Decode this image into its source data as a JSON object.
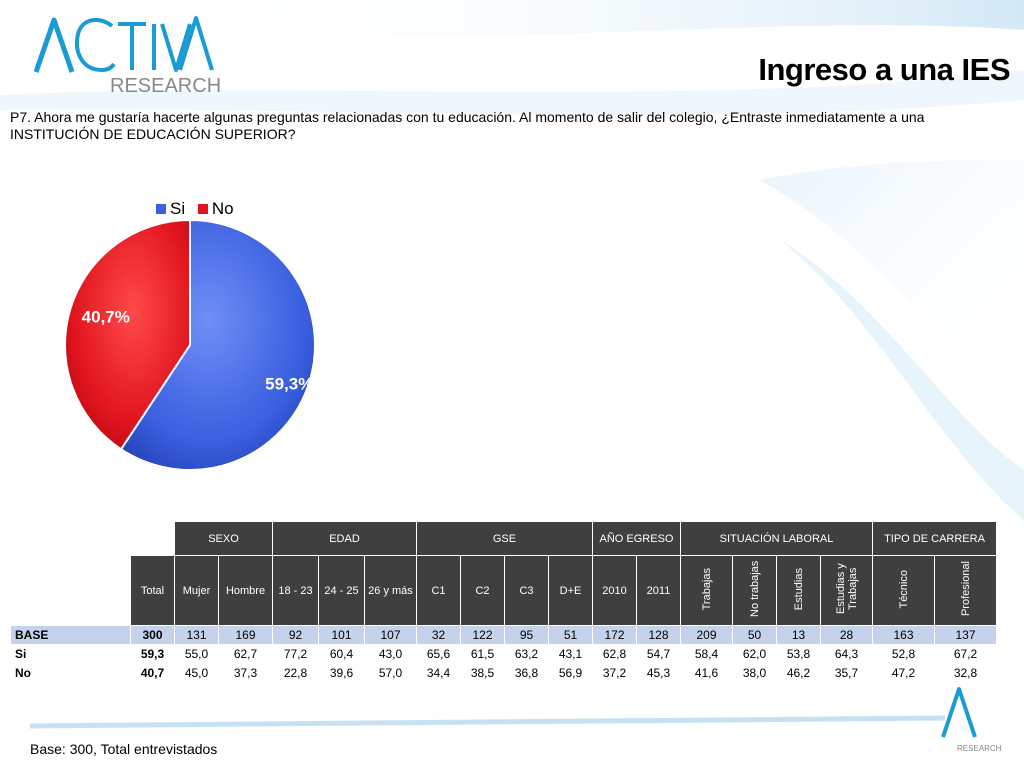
{
  "brand": {
    "logo_main": "ACTIVA",
    "logo_sub": "RESEARCH",
    "footer_logo_text": "RESEARCH"
  },
  "slide": {
    "title": "Ingreso a una IES",
    "question": "P7. Ahora me gustaría hacerte algunas preguntas relacionadas con tu educación. Al momento de salir del colegio, ¿Entraste inmediatamente a una INSTITUCIÓN DE EDUCACIÓN SUPERIOR?",
    "footer": "Base: 300, Total entrevistados"
  },
  "colors": {
    "si": "#3a5fe0",
    "no": "#e0141e",
    "header_bg": "#3f3f3f",
    "base_row": "#c5d2eb"
  },
  "chart_data": {
    "type": "pie",
    "legend_position": "top",
    "slices": [
      {
        "name": "Si",
        "value": 59.3,
        "label": "59,3%"
      },
      {
        "name": "No",
        "value": 40.7,
        "label": "40,7%"
      }
    ]
  },
  "table": {
    "groups": {
      "sexo": "SEXO",
      "edad": "EDAD",
      "gse": "GSE",
      "anio": "AÑO EGRESO",
      "situacion": "SITUACIÓN LABORAL",
      "tipo": "TIPO DE CARRERA"
    },
    "columns": {
      "total": "Total",
      "mujer": "Mujer",
      "hombre": "Hombre",
      "e1823": "18 - 23",
      "e2425": "24 - 25",
      "e26": "26 y más",
      "c1": "C1",
      "c2": "C2",
      "c3": "C3",
      "de": "D+E",
      "y2010": "2010",
      "y2011": "2011",
      "trabajas": "Trabajas",
      "notrabajas": "No trabajas",
      "estudias": "Estudias",
      "estytrab": "Estudias y Trabajas",
      "tecnico": "Técnico",
      "profesional": "Profesional"
    },
    "rows": {
      "base": {
        "label": "BASE",
        "v": [
          "300",
          "131",
          "169",
          "92",
          "101",
          "107",
          "32",
          "122",
          "95",
          "51",
          "172",
          "128",
          "209",
          "50",
          "13",
          "28",
          "163",
          "137"
        ]
      },
      "si": {
        "label": "Si",
        "v": [
          "59,3",
          "55,0",
          "62,7",
          "77,2",
          "60,4",
          "43,0",
          "65,6",
          "61,5",
          "63,2",
          "43,1",
          "62,8",
          "54,7",
          "58,4",
          "62,0",
          "53,8",
          "64,3",
          "52,8",
          "67,2"
        ]
      },
      "no": {
        "label": "No",
        "v": [
          "40,7",
          "45,0",
          "37,3",
          "22,8",
          "39,6",
          "57,0",
          "34,4",
          "38,5",
          "36,8",
          "56,9",
          "37,2",
          "45,3",
          "41,6",
          "38,0",
          "46,2",
          "35,7",
          "47,2",
          "32,8"
        ]
      }
    }
  }
}
